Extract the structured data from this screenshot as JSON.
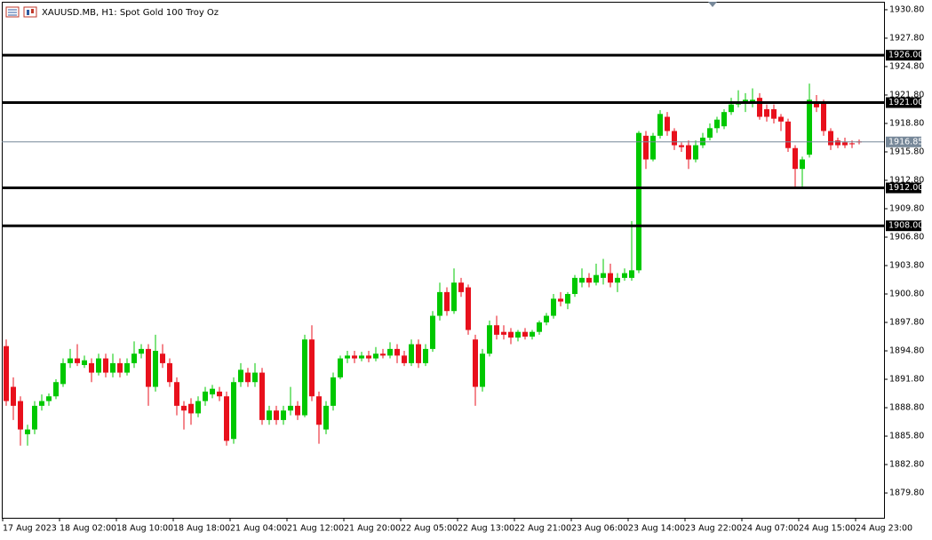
{
  "chart_data": {
    "type": "candlestick",
    "title": "XAUUSD.MB, H1:  Spot Gold 100 Troy Oz",
    "categories": [
      "17 Aug 2023",
      null,
      null,
      null,
      null,
      null,
      null,
      null,
      "18 Aug 02:00",
      null,
      null,
      null,
      null,
      null,
      null,
      null,
      "18 Aug 10:00",
      null,
      null,
      null,
      null,
      null,
      null,
      null,
      "18 Aug 18:00",
      null,
      null,
      null,
      null,
      null,
      null,
      null,
      "21 Aug 04:00",
      null,
      null,
      null,
      null,
      null,
      null,
      null,
      "21 Aug 12:00",
      null,
      null,
      null,
      null,
      null,
      null,
      null,
      "21 Aug 20:00",
      null,
      null,
      null,
      null,
      null,
      null,
      null,
      "22 Aug 05:00",
      null,
      null,
      null,
      null,
      null,
      null,
      null,
      "22 Aug 13:00",
      null,
      null,
      null,
      null,
      null,
      null,
      null,
      "22 Aug 21:00",
      null,
      null,
      null,
      null,
      null,
      null,
      null,
      "23 Aug 06:00",
      null,
      null,
      null,
      null,
      null,
      null,
      null,
      "23 Aug 14:00",
      null,
      null,
      null,
      null,
      null,
      null,
      null,
      "23 Aug 22:00",
      null,
      null,
      null,
      null,
      null,
      null,
      null,
      "24 Aug 07:00",
      null,
      null,
      null,
      null,
      null,
      null,
      null,
      "24 Aug 15:00",
      null,
      null,
      null,
      null,
      null,
      null,
      null,
      "24 Aug 23:00"
    ],
    "open": [
      1895.3,
      1891.0,
      1889.5,
      1886.0,
      1886.5,
      1889.0,
      1889.5,
      1890.0,
      1891.3,
      1893.5,
      1894.0,
      1893.3,
      1893.5,
      1892.5,
      1894.0,
      1892.5,
      1893.5,
      1892.5,
      1893.5,
      1894.5,
      1895.0,
      1891.0,
      1894.5,
      1893.5,
      1891.5,
      1889.0,
      1889.2,
      1888.2,
      1889.5,
      1890.2,
      1890.5,
      1890.0,
      1885.5,
      1891.5,
      1892.5,
      1891.5,
      1892.5,
      1887.5,
      1888.5,
      1887.5,
      1888.5,
      1889.0,
      1888.0,
      1896.0,
      1890.0,
      1886.5,
      1889.0,
      1892.0,
      1894.0,
      1894.3,
      1894.0,
      1894.3,
      1894.0,
      1894.5,
      1894.3,
      1895.0,
      1894.3,
      1893.5,
      1895.5,
      1893.5,
      1895.0,
      1898.5,
      1901.0,
      1899.0,
      1902.0,
      1901.5,
      1896.0,
      1891.0,
      1894.5,
      1897.5,
      1896.8,
      1896.8,
      1896.2,
      1896.8,
      1896.3,
      1896.8,
      1897.8,
      1898.5,
      1900.3,
      1899.8,
      1900.8,
      1902.0,
      1902.5,
      1902.0,
      1902.5,
      1903.0,
      1902.0,
      1902.5,
      1902.5,
      1903.3,
      1917.5,
      1915.0,
      1917.5,
      1919.5,
      1918.0,
      1916.5,
      1916.5,
      1915.0,
      1916.5,
      1917.3,
      1918.3,
      1918.5,
      1920.0,
      1920.8,
      1921.0,
      1921.0,
      1921.5,
      1920.3,
      1920.3,
      1919.5,
      1919.0,
      1916.2,
      1914.0,
      1915.5,
      1921.0,
      1921.0,
      1918.0,
      1917.0,
      1916.8,
      1916.7,
      1916.9
    ],
    "high": [
      1896.0,
      1892.0,
      1890.0,
      1887.0,
      1889.5,
      1890.2,
      1890.3,
      1891.8,
      1894.0,
      1895.0,
      1895.5,
      1894.3,
      1894.0,
      1894.5,
      1894.5,
      1894.5,
      1894.0,
      1894.0,
      1895.8,
      1895.5,
      1895.5,
      1896.5,
      1895.5,
      1894.0,
      1892.0,
      1889.5,
      1889.8,
      1890.0,
      1891.0,
      1891.2,
      1891.0,
      1890.5,
      1892.0,
      1893.5,
      1893.0,
      1893.5,
      1893.0,
      1889.0,
      1889.0,
      1889.0,
      1891.0,
      1889.5,
      1896.5,
      1897.5,
      1890.5,
      1889.5,
      1892.5,
      1894.3,
      1894.8,
      1894.8,
      1894.7,
      1894.8,
      1895.2,
      1895.0,
      1895.7,
      1895.5,
      1894.8,
      1896.0,
      1896.0,
      1895.5,
      1899.0,
      1902.0,
      1901.5,
      1903.5,
      1902.5,
      1901.8,
      1896.5,
      1895.0,
      1898.0,
      1898.5,
      1897.5,
      1897.2,
      1897.0,
      1897.2,
      1897.0,
      1898.0,
      1898.8,
      1900.8,
      1901.0,
      1901.0,
      1902.8,
      1903.5,
      1903.0,
      1904.0,
      1904.5,
      1904.0,
      1903.0,
      1903.5,
      1908.5,
      1918.0,
      1918.0,
      1917.8,
      1920.2,
      1920.0,
      1918.3,
      1916.8,
      1917.0,
      1917.0,
      1917.8,
      1918.8,
      1919.5,
      1920.3,
      1921.5,
      1922.3,
      1922.0,
      1922.5,
      1922.0,
      1920.8,
      1920.8,
      1919.8,
      1919.3,
      1916.5,
      1915.3,
      1923.0,
      1921.8,
      1921.3,
      1918.3,
      1917.3,
      1917.3,
      1917.0,
      1917.1
    ],
    "low": [
      1889.0,
      1887.5,
      1884.8,
      1884.8,
      1886.0,
      1888.5,
      1889.0,
      1889.7,
      1891.0,
      1893.0,
      1893.2,
      1893.0,
      1891.5,
      1892.2,
      1892.0,
      1892.0,
      1892.0,
      1892.2,
      1893.0,
      1894.0,
      1889.0,
      1890.5,
      1893.0,
      1891.0,
      1888.0,
      1886.5,
      1887.0,
      1887.8,
      1889.0,
      1889.8,
      1889.5,
      1884.8,
      1885.0,
      1891.0,
      1891.0,
      1891.0,
      1887.0,
      1887.0,
      1887.0,
      1887.0,
      1888.0,
      1887.5,
      1887.8,
      1889.5,
      1885.0,
      1886.0,
      1888.5,
      1891.8,
      1893.5,
      1893.5,
      1893.7,
      1893.6,
      1893.7,
      1894.0,
      1894.0,
      1893.5,
      1893.2,
      1893.2,
      1893.0,
      1893.2,
      1894.7,
      1898.0,
      1898.5,
      1898.7,
      1900.5,
      1896.5,
      1889.0,
      1890.5,
      1894.2,
      1896.0,
      1896.0,
      1895.5,
      1895.8,
      1896.0,
      1896.0,
      1896.5,
      1897.5,
      1898.2,
      1899.5,
      1899.2,
      1900.5,
      1901.5,
      1901.5,
      1901.7,
      1901.8,
      1901.5,
      1901.0,
      1902.2,
      1902.2,
      1903.0,
      1914.0,
      1914.8,
      1917.2,
      1917.5,
      1916.0,
      1915.8,
      1914.0,
      1914.7,
      1916.2,
      1917.0,
      1917.8,
      1918.2,
      1919.7,
      1920.5,
      1920.0,
      1920.5,
      1919.2,
      1919.0,
      1918.8,
      1918.0,
      1915.8,
      1912.0,
      1912.0,
      1915.2,
      1920.0,
      1917.5,
      1916.0,
      1916.2,
      1916.2,
      1916.2,
      1916.6
    ],
    "close": [
      1889.5,
      1889.0,
      1886.5,
      1886.5,
      1889.0,
      1889.5,
      1890.0,
      1891.5,
      1893.5,
      1894.0,
      1893.5,
      1893.8,
      1892.5,
      1894.0,
      1892.5,
      1893.5,
      1892.5,
      1893.5,
      1894.5,
      1895.0,
      1891.0,
      1894.8,
      1893.5,
      1891.5,
      1889.0,
      1888.5,
      1888.2,
      1889.5,
      1890.5,
      1890.8,
      1890.0,
      1885.3,
      1891.5,
      1892.8,
      1891.5,
      1892.5,
      1887.5,
      1888.5,
      1887.5,
      1888.5,
      1889.0,
      1888.0,
      1896.0,
      1890.0,
      1887.0,
      1889.0,
      1892.0,
      1894.0,
      1894.3,
      1894.0,
      1894.3,
      1894.0,
      1894.5,
      1894.3,
      1895.0,
      1894.3,
      1893.5,
      1895.5,
      1893.5,
      1895.0,
      1898.5,
      1901.0,
      1899.0,
      1902.0,
      1901.0,
      1897.0,
      1891.0,
      1894.5,
      1897.5,
      1896.5,
      1896.5,
      1896.2,
      1896.8,
      1896.3,
      1896.8,
      1897.8,
      1898.5,
      1900.3,
      1900.0,
      1900.8,
      1902.5,
      1902.5,
      1902.0,
      1902.8,
      1903.0,
      1902.0,
      1902.5,
      1903.0,
      1903.3,
      1917.8,
      1915.0,
      1917.5,
      1919.8,
      1918.0,
      1916.5,
      1916.3,
      1915.0,
      1916.5,
      1917.3,
      1918.3,
      1919.2,
      1920.0,
      1920.8,
      1921.0,
      1921.3,
      1921.3,
      1919.5,
      1919.5,
      1919.3,
      1919.0,
      1916.2,
      1914.0,
      1915.0,
      1921.3,
      1920.5,
      1918.0,
      1916.5,
      1916.5,
      1916.5,
      1916.6,
      1916.85
    ],
    "up_color": "#00c800",
    "down_color": "#e8101c",
    "ylim": [
      1877.18,
      1931.64
    ],
    "yticks": [
      {
        "value": 1879.8,
        "label": "1879.80"
      },
      {
        "value": 1882.8,
        "label": "1882.80"
      },
      {
        "value": 1885.8,
        "label": "1885.80"
      },
      {
        "value": 1888.8,
        "label": "1888.80"
      },
      {
        "value": 1891.8,
        "label": "1891.80"
      },
      {
        "value": 1894.8,
        "label": "1894.80"
      },
      {
        "value": 1897.8,
        "label": "1897.80"
      },
      {
        "value": 1900.8,
        "label": "1900.80"
      },
      {
        "value": 1903.8,
        "label": "1903.80"
      },
      {
        "value": 1906.8,
        "label": "1906.80"
      },
      {
        "value": 1909.8,
        "label": "1909.80"
      },
      {
        "value": 1912.8,
        "label": "1912.80"
      },
      {
        "value": 1915.8,
        "label": "1915.80"
      },
      {
        "value": 1918.8,
        "label": "1918.80"
      },
      {
        "value": 1921.8,
        "label": "1921.80"
      },
      {
        "value": 1924.8,
        "label": "1924.80"
      },
      {
        "value": 1927.8,
        "label": "1927.80"
      },
      {
        "value": 1930.8,
        "label": "1930.80"
      }
    ],
    "hlines": [
      {
        "value": 1926,
        "label": "1926.00"
      },
      {
        "value": 1921,
        "label": "1921.00"
      },
      {
        "value": 1912,
        "label": "1912.00"
      },
      {
        "value": 1908,
        "label": "1908.00"
      }
    ],
    "price_line": 1916.85
  }
}
